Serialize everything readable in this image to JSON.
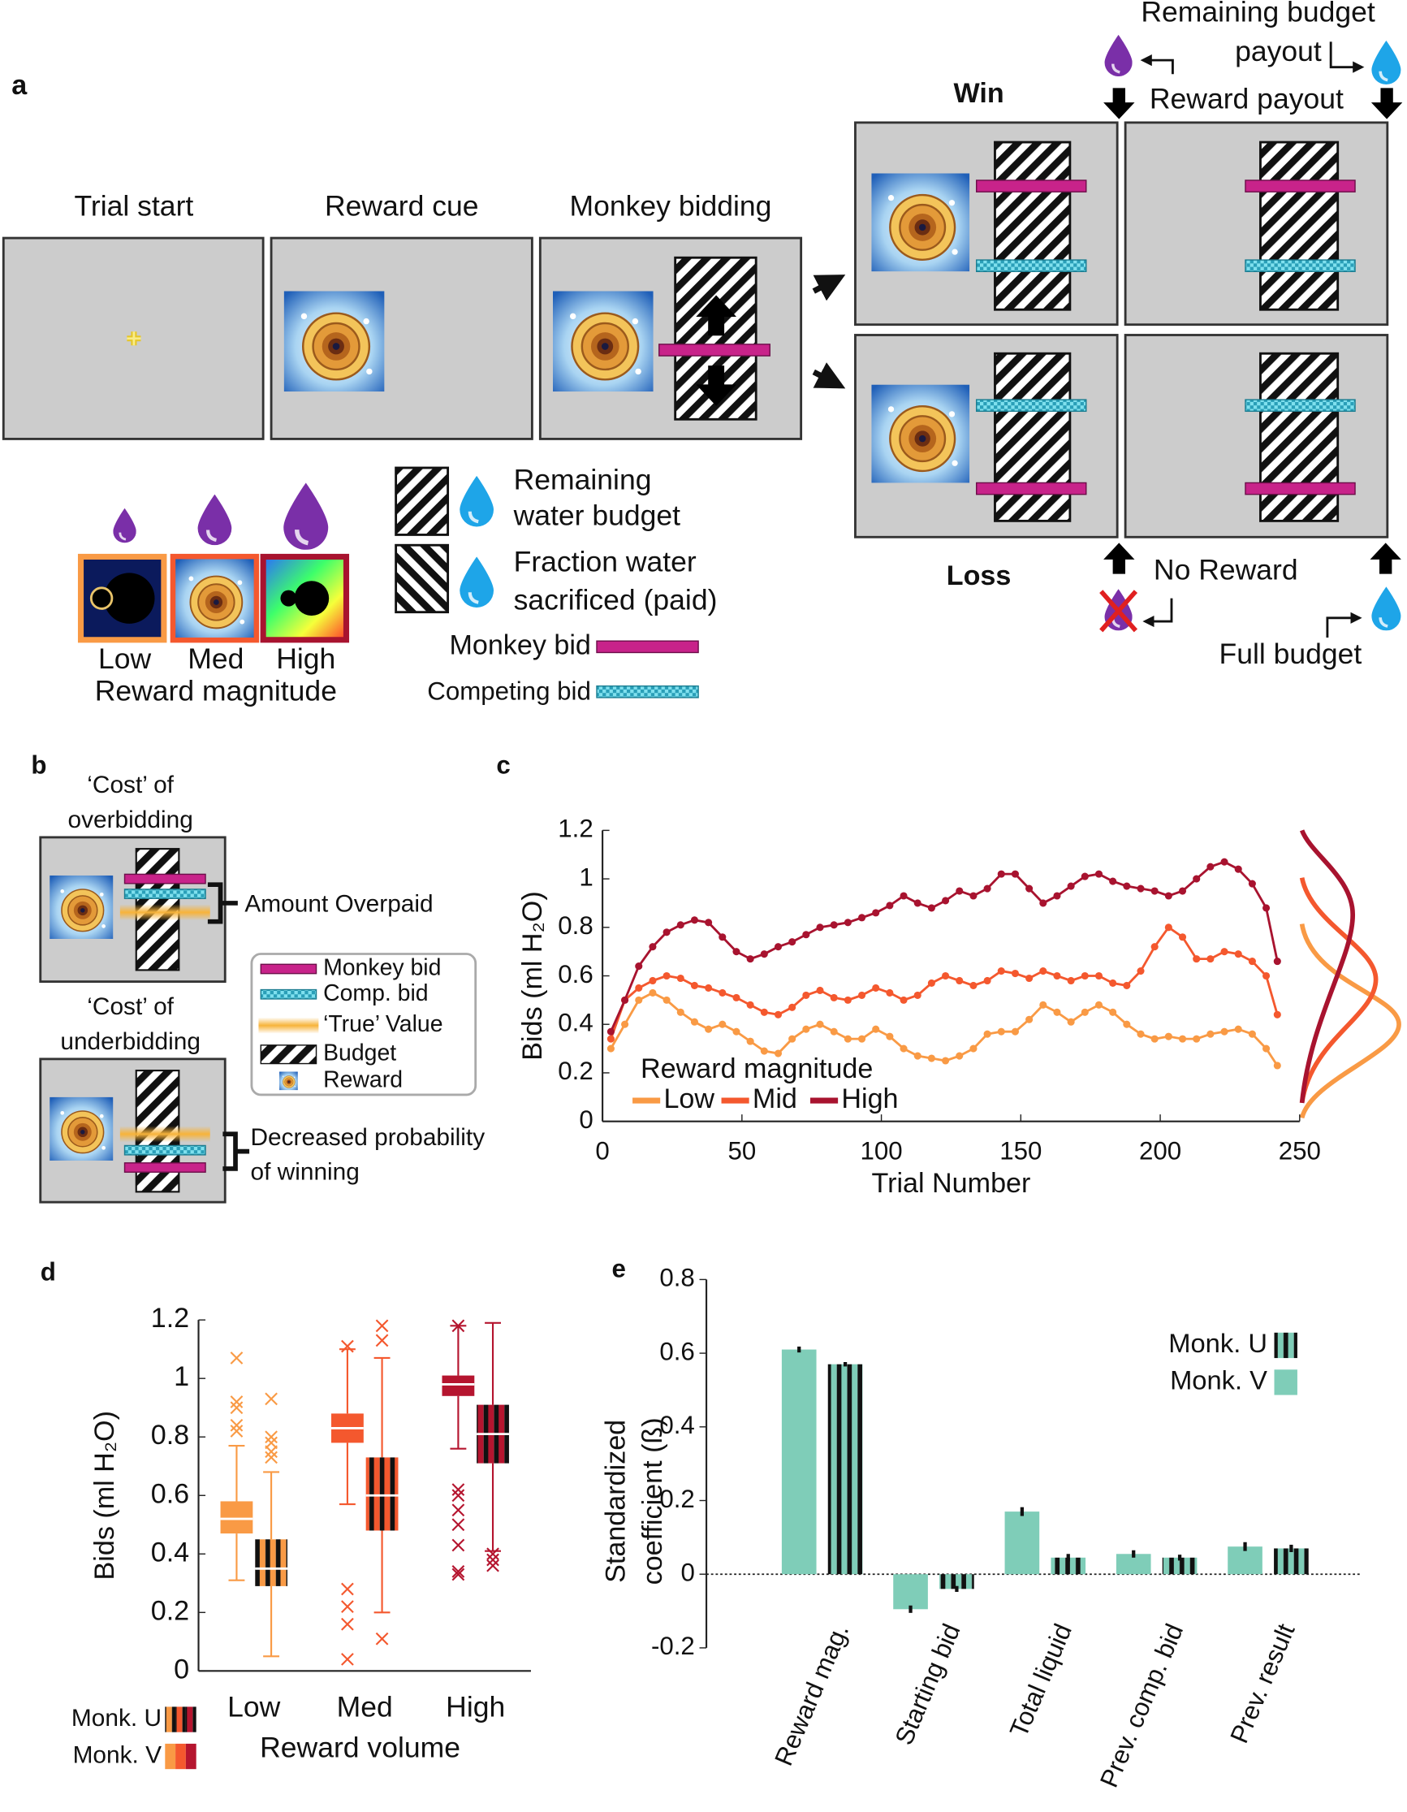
{
  "panel_a": {
    "label": "a",
    "screens": [
      "Trial start",
      "Reward cue",
      "Monkey bidding"
    ],
    "win": "Win",
    "loss": "Loss",
    "remaining_budget_payout": [
      "Remaining budget",
      "payout"
    ],
    "reward_payout": "Reward payout",
    "no_reward": "No Reward",
    "full_budget": "Full budget",
    "legend": {
      "remaining": [
        "Remaining",
        "water budget"
      ],
      "fraction": [
        "Fraction water",
        "sacrificed (paid)"
      ],
      "monkey_bid": "Monkey bid",
      "competing_bid": "Competing bid"
    },
    "magnitudes": [
      "Low",
      "Med",
      "High"
    ],
    "magnitude_title": "Reward magnitude"
  },
  "panel_b": {
    "label": "b",
    "over": [
      "‘Cost’ of",
      "overbidding"
    ],
    "overpaid": "Amount Overpaid",
    "under": [
      "‘Cost’ of",
      "underbidding"
    ],
    "decreased": [
      "Decreased probability",
      "of winning"
    ],
    "legend": [
      "Monkey bid",
      "Comp. bid",
      "‘True’ Value",
      "Budget",
      "Reward"
    ]
  },
  "chart_data": [
    {
      "type": "line",
      "panel": "c",
      "x_label": "Trial Number",
      "y_label": "Bids (ml H₂O)",
      "legend_title": "Reward magnitude",
      "x": [
        3,
        8,
        13,
        18,
        23,
        28,
        33,
        38,
        43,
        48,
        53,
        58,
        63,
        68,
        73,
        78,
        83,
        88,
        93,
        98,
        103,
        108,
        113,
        118,
        123,
        128,
        133,
        138,
        143,
        148,
        153,
        158,
        163,
        168,
        173,
        178,
        183,
        188,
        193,
        198,
        203,
        208,
        213,
        218,
        223,
        228,
        233,
        238,
        242
      ],
      "series": [
        {
          "name": "Low",
          "color": "#f99a45",
          "values": [
            0.3,
            0.4,
            0.5,
            0.53,
            0.5,
            0.45,
            0.41,
            0.38,
            0.4,
            0.37,
            0.33,
            0.29,
            0.28,
            0.34,
            0.38,
            0.4,
            0.37,
            0.34,
            0.34,
            0.38,
            0.35,
            0.3,
            0.27,
            0.26,
            0.25,
            0.27,
            0.3,
            0.36,
            0.37,
            0.37,
            0.42,
            0.48,
            0.45,
            0.41,
            0.45,
            0.48,
            0.45,
            0.4,
            0.36,
            0.34,
            0.35,
            0.34,
            0.34,
            0.36,
            0.37,
            0.38,
            0.36,
            0.3,
            0.23
          ]
        },
        {
          "name": "Mid",
          "color": "#f4582e",
          "values": [
            0.34,
            0.5,
            0.55,
            0.58,
            0.6,
            0.59,
            0.56,
            0.55,
            0.53,
            0.51,
            0.48,
            0.45,
            0.44,
            0.47,
            0.52,
            0.54,
            0.51,
            0.5,
            0.52,
            0.55,
            0.53,
            0.5,
            0.52,
            0.57,
            0.6,
            0.58,
            0.56,
            0.58,
            0.62,
            0.61,
            0.59,
            0.62,
            0.6,
            0.58,
            0.6,
            0.6,
            0.57,
            0.56,
            0.62,
            0.72,
            0.8,
            0.76,
            0.67,
            0.67,
            0.7,
            0.69,
            0.66,
            0.6,
            0.44
          ]
        },
        {
          "name": "High",
          "color": "#a8132f",
          "values": [
            0.37,
            0.5,
            0.64,
            0.72,
            0.78,
            0.81,
            0.83,
            0.82,
            0.76,
            0.7,
            0.67,
            0.69,
            0.72,
            0.74,
            0.77,
            0.8,
            0.81,
            0.82,
            0.84,
            0.86,
            0.89,
            0.93,
            0.9,
            0.88,
            0.91,
            0.95,
            0.93,
            0.96,
            1.02,
            1.02,
            0.96,
            0.9,
            0.93,
            0.97,
            1.01,
            1.02,
            0.99,
            0.97,
            0.96,
            0.95,
            0.93,
            0.95,
            1.0,
            1.05,
            1.07,
            1.04,
            0.98,
            0.88,
            0.66
          ]
        }
      ],
      "xlim": [
        0,
        250
      ],
      "xticks": [
        0,
        50,
        100,
        150,
        200,
        250
      ],
      "ylim": [
        0,
        1.2
      ],
      "yticks": [
        0,
        0.2,
        0.4,
        0.6,
        0.8,
        1,
        1.2
      ]
    },
    {
      "type": "box",
      "panel": "d",
      "x_label": "Reward volume",
      "y_label": "Bids (ml H₂O)",
      "categories": [
        "Low",
        "Med",
        "High"
      ],
      "category_colors": [
        "#f99a45",
        "#f4582e",
        "#b5152f"
      ],
      "series": [
        {
          "name": "Monk. U",
          "pattern": "hatched",
          "boxes": [
            {
              "min": 0.05,
              "q1": 0.29,
              "median": 0.35,
              "q3": 0.45,
              "max": 0.68,
              "outliers": [
                0.73,
                0.75,
                0.78,
                0.8,
                0.93
              ]
            },
            {
              "min": 0.2,
              "q1": 0.48,
              "median": 0.6,
              "q3": 0.73,
              "max": 1.07,
              "outliers": [
                0.11,
                1.13,
                1.18
              ]
            },
            {
              "min": 0.41,
              "q1": 0.71,
              "median": 0.81,
              "q3": 0.91,
              "max": 1.19,
              "outliers": [
                0.36,
                0.38,
                0.4
              ]
            }
          ]
        },
        {
          "name": "Monk. V",
          "pattern": "solid",
          "boxes": [
            {
              "min": 0.31,
              "q1": 0.47,
              "median": 0.52,
              "q3": 0.58,
              "max": 0.77,
              "outliers": [
                0.82,
                0.84,
                0.9,
                0.92,
                1.07
              ]
            },
            {
              "min": 0.57,
              "q1": 0.78,
              "median": 0.83,
              "q3": 0.88,
              "max": 1.1,
              "outliers": [
                0.04,
                0.16,
                0.22,
                0.28,
                1.11
              ]
            },
            {
              "min": 0.76,
              "q1": 0.94,
              "median": 0.98,
              "q3": 1.01,
              "max": 1.18,
              "outliers": [
                0.33,
                0.34,
                0.43,
                0.5,
                0.55,
                0.6,
                0.62,
                1.18
              ]
            }
          ]
        }
      ],
      "ylim": [
        0,
        1.2
      ],
      "yticks": [
        0,
        0.2,
        0.4,
        0.6,
        0.8,
        1,
        1.2
      ]
    },
    {
      "type": "bar",
      "panel": "e",
      "y_label": [
        "Standardized",
        "coefficient (ß)"
      ],
      "categories": [
        "Reward mag.",
        "Starting bid",
        "Total liquid",
        "Prev. comp. bid",
        "Prev. result"
      ],
      "series": [
        {
          "name": "Monk. U",
          "color": "#7fcdb8",
          "pattern": "hatched",
          "values": [
            0.57,
            -0.04,
            0.045,
            0.045,
            0.07
          ],
          "errors": [
            0.006,
            0.008,
            0.01,
            0.008,
            0.01
          ]
        },
        {
          "name": "Monk. V",
          "color": "#7fcdb8",
          "pattern": "solid",
          "values": [
            0.61,
            -0.095,
            0.17,
            0.055,
            0.075
          ],
          "errors": [
            0.008,
            0.01,
            0.012,
            0.01,
            0.012
          ]
        }
      ],
      "ylim": [
        -0.2,
        0.8
      ],
      "yticks": [
        -0.2,
        0,
        0.2,
        0.4,
        0.6,
        0.8
      ]
    }
  ]
}
